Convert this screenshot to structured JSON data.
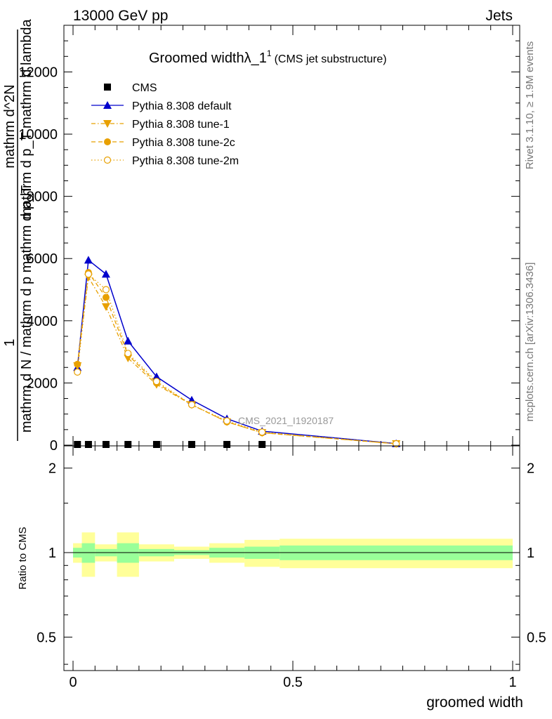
{
  "header": {
    "left": "13000 GeV pp",
    "right": "Jets"
  },
  "side_labels": {
    "rivet": "Rivet 3.1.10, ≥ 1.9M events",
    "mcplots": "mcplots.cern.ch [arXiv:1306.3436]"
  },
  "chart_data": [
    {
      "type": "line",
      "title": "Groomed widthλ_1",
      "title_superscript": "1",
      "subtitle": "(CMS jet substructure)",
      "ylabel_numerator": "1",
      "ylabel_top": "mathrm d^2N",
      "ylabel_mid": "mathrm d p_T mathrm d lambda",
      "ylabel_bottom": "mathrm d N / mathrm d p mathrm d p_T",
      "watermark": "CMS_2021_I1920187",
      "xlim": [
        0,
        1
      ],
      "ylim": [
        0,
        13500
      ],
      "y_ticks": [
        0,
        2000,
        4000,
        6000,
        8000,
        10000,
        12000
      ],
      "y_tick_labels": [
        "0",
        "2000",
        "4000",
        "6000",
        "8000",
        "10000",
        "12000"
      ],
      "legend_position": "top-left",
      "series": [
        {
          "name": "CMS",
          "color": "#000000",
          "marker": "square",
          "line": "none",
          "x": [
            0.01,
            0.035,
            0.075,
            0.125,
            0.19,
            0.27,
            0.35,
            0.43
          ],
          "y": [
            0,
            0,
            0,
            0,
            0,
            0,
            0,
            0
          ]
        },
        {
          "name": "Pythia 8.308 default",
          "color": "#0000cc",
          "marker": "triangle-up",
          "line": "solid",
          "x": [
            0.01,
            0.035,
            0.075,
            0.125,
            0.19,
            0.27,
            0.35,
            0.43,
            0.735
          ],
          "y": [
            2500,
            5950,
            5500,
            3350,
            2200,
            1450,
            850,
            450,
            50
          ]
        },
        {
          "name": "Pythia 8.308 tune-1",
          "color": "#e8a000",
          "marker": "triangle-down",
          "line": "dashdot",
          "x": [
            0.01,
            0.035,
            0.075,
            0.125,
            0.19,
            0.27,
            0.35,
            0.43,
            0.735
          ],
          "y": [
            2550,
            5400,
            4450,
            2800,
            1950,
            1300,
            750,
            400,
            45
          ]
        },
        {
          "name": "Pythia 8.308 tune-2c",
          "color": "#e8a000",
          "marker": "circle-filled",
          "line": "dashed",
          "x": [
            0.01,
            0.035,
            0.075,
            0.125,
            0.19,
            0.27,
            0.35,
            0.43,
            0.735
          ],
          "y": [
            2600,
            5550,
            4750,
            2900,
            2000,
            1300,
            750,
            400,
            45
          ]
        },
        {
          "name": "Pythia 8.308 tune-2m",
          "color": "#e8a000",
          "marker": "circle-open",
          "line": "dotted",
          "x": [
            0.01,
            0.035,
            0.075,
            0.125,
            0.19,
            0.27,
            0.35,
            0.43,
            0.735
          ],
          "y": [
            2350,
            5500,
            5000,
            2950,
            2050,
            1300,
            780,
            420,
            45
          ]
        }
      ]
    },
    {
      "type": "area",
      "ylabel": "Ratio to CMS",
      "xlabel": "groomed width",
      "xlim": [
        0,
        1
      ],
      "ylim": [
        0.38,
        2.4
      ],
      "x_ticks": [
        0,
        0.5,
        1
      ],
      "x_tick_labels": [
        "0",
        "0.5",
        "1"
      ],
      "y_ticks": [
        0.5,
        1,
        2
      ],
      "y_tick_labels": [
        "0.5",
        "1",
        "2"
      ],
      "reference_line": 1,
      "bands": {
        "outer_color": "#ffff99",
        "inner_color": "#99ff99",
        "bins": [
          {
            "x0": 0.0,
            "x1": 0.02,
            "outer": [
              0.92,
              1.08
            ],
            "inner": [
              0.96,
              1.04
            ]
          },
          {
            "x0": 0.02,
            "x1": 0.05,
            "outer": [
              0.82,
              1.18
            ],
            "inner": [
              0.92,
              1.08
            ]
          },
          {
            "x0": 0.05,
            "x1": 0.1,
            "outer": [
              0.93,
              1.07
            ],
            "inner": [
              0.97,
              1.03
            ]
          },
          {
            "x0": 0.1,
            "x1": 0.15,
            "outer": [
              0.82,
              1.18
            ],
            "inner": [
              0.92,
              1.08
            ]
          },
          {
            "x0": 0.15,
            "x1": 0.23,
            "outer": [
              0.93,
              1.07
            ],
            "inner": [
              0.97,
              1.03
            ]
          },
          {
            "x0": 0.23,
            "x1": 0.31,
            "outer": [
              0.95,
              1.05
            ],
            "inner": [
              0.98,
              1.02
            ]
          },
          {
            "x0": 0.31,
            "x1": 0.39,
            "outer": [
              0.92,
              1.08
            ],
            "inner": [
              0.96,
              1.04
            ]
          },
          {
            "x0": 0.39,
            "x1": 0.47,
            "outer": [
              0.89,
              1.11
            ],
            "inner": [
              0.95,
              1.05
            ]
          },
          {
            "x0": 0.47,
            "x1": 1.0,
            "outer": [
              0.88,
              1.12
            ],
            "inner": [
              0.94,
              1.06
            ]
          }
        ]
      }
    }
  ]
}
